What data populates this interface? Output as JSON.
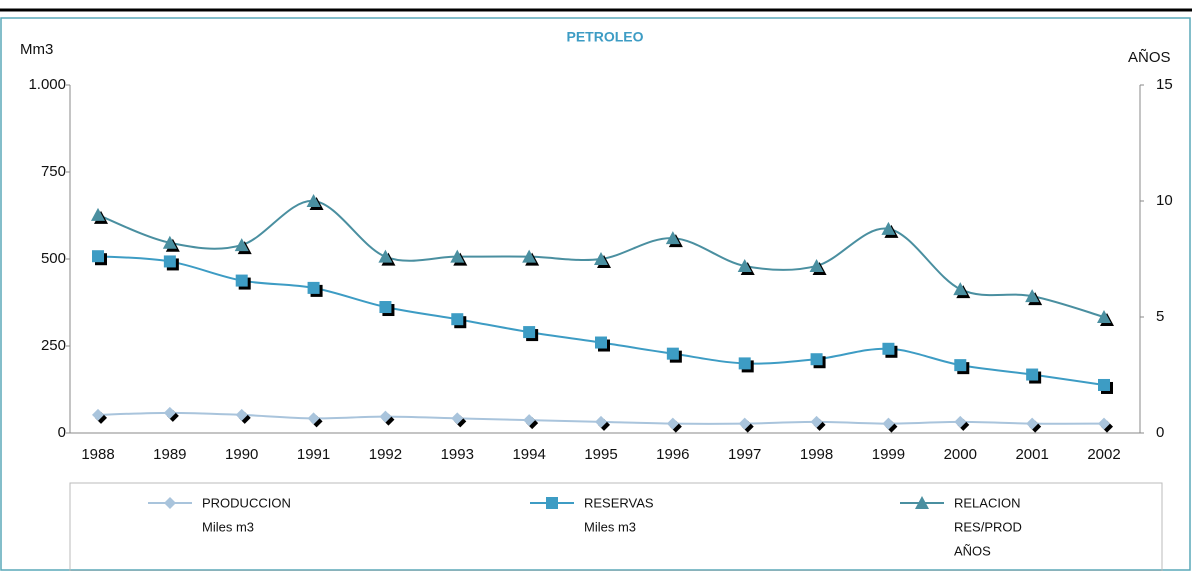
{
  "chart_data": {
    "type": "line",
    "title": "PETROLEO",
    "ylabel": "Mm3",
    "y2label": "AÑOS",
    "categories": [
      "1988",
      "1989",
      "1990",
      "1991",
      "1992",
      "1993",
      "1994",
      "1995",
      "1996",
      "1997",
      "1998",
      "1999",
      "2000",
      "2001",
      "2002"
    ],
    "ylim": [
      0,
      1000
    ],
    "yticks": [
      0,
      250,
      500,
      750,
      {
        "value": 1000,
        "label": "1.000"
      }
    ],
    "y2lim": [
      0,
      15
    ],
    "y2ticks": [
      0,
      5,
      10,
      15
    ],
    "series": [
      {
        "name": [
          "PRODUCCION",
          "Miles m3"
        ],
        "color": "#a9c4dc",
        "marker": "diamond",
        "values": [
          52,
          58,
          52,
          42,
          47,
          42,
          37,
          32,
          27,
          27,
          32,
          27,
          32,
          27,
          27
        ]
      },
      {
        "name": [
          "RESERVAS",
          "Miles m3"
        ],
        "color": "#3d9cc4",
        "marker": "square",
        "values": [
          508,
          493,
          438,
          417,
          362,
          327,
          290,
          260,
          228,
          200,
          212,
          242,
          195,
          168,
          138
        ]
      },
      {
        "name": [
          "RELACION",
          "RES/PROD",
          "AÑOS"
        ],
        "color": "#4a8fa0",
        "marker": "triangle",
        "axis": "y2",
        "values": [
          9.4,
          8.2,
          8.1,
          10.0,
          7.6,
          7.6,
          7.6,
          7.5,
          8.4,
          7.2,
          7.2,
          8.8,
          6.2,
          5.9,
          5.0
        ]
      }
    ]
  }
}
